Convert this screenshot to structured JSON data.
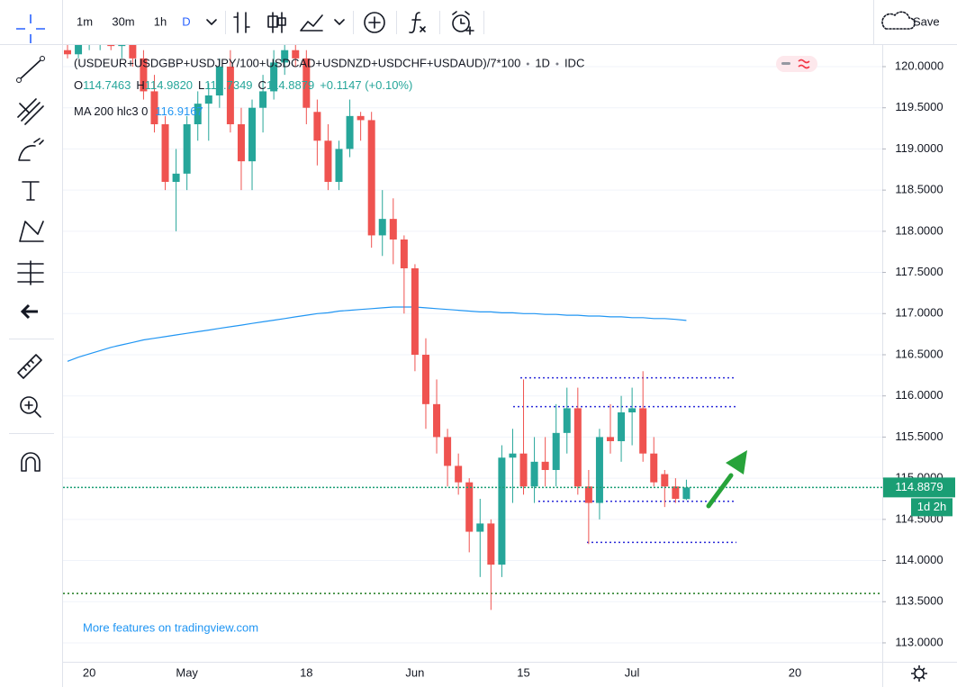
{
  "toolbar": {
    "intervals": [
      "1m",
      "30m",
      "1h",
      "D"
    ],
    "save": "Save"
  },
  "chart_data": {
    "type": "candlestick",
    "title": "(USDEUR+USDGBP+USDJPY/100+USDCAD+USDNZD+USDCHF+USDAUD)/7*100",
    "interval": "1D",
    "source": "IDC",
    "ohlc_legend": [
      {
        "key": "O",
        "value": "114.7463"
      },
      {
        "key": "H",
        "value": "114.9820"
      },
      {
        "key": "L",
        "value": "114.7349"
      },
      {
        "key": "C",
        "value": "114.8879"
      }
    ],
    "change": "+0.1147 (+0.10%)",
    "up_color": "#26a69a",
    "down_color": "#ef5350",
    "categories": [
      null,
      null,
      "20",
      null,
      null,
      null,
      null,
      null,
      null,
      null,
      null,
      "May",
      null,
      null,
      null,
      null,
      null,
      null,
      null,
      null,
      null,
      null,
      "18",
      null,
      null,
      null,
      null,
      null,
      null,
      null,
      null,
      null,
      "Jun",
      null,
      null,
      null,
      null,
      null,
      null,
      null,
      null,
      null,
      "15",
      null,
      null,
      null,
      null,
      null,
      null,
      null,
      null,
      null,
      "Jul",
      null,
      null,
      null,
      null,
      null,
      null,
      null,
      null,
      null,
      null,
      null,
      null,
      null,
      null,
      "20"
    ],
    "open": [
      120.2,
      120.15,
      120.3,
      120.35,
      120.4,
      120.25,
      120.3,
      120.1,
      119.7,
      119.3,
      118.6,
      118.7,
      119.3,
      119.55,
      119.65,
      120.0,
      119.3,
      118.85,
      119.5,
      119.7,
      120.05,
      120.2,
      120.1,
      119.45,
      119.1,
      118.6,
      119.0,
      119.4,
      119.35,
      117.95,
      118.15,
      117.9,
      117.55,
      116.5,
      115.9,
      115.5,
      115.15,
      114.95,
      114.35,
      114.45,
      113.95,
      115.25,
      115.3,
      114.9,
      115.2,
      115.1,
      115.55,
      115.85,
      114.9,
      114.7,
      115.5,
      115.45,
      115.8,
      115.85,
      115.3,
      115.05,
      114.9,
      114.7463,
      null,
      null,
      null,
      null,
      null,
      null,
      null,
      null,
      null,
      null
    ],
    "high": [
      120.3,
      120.35,
      120.45,
      120.5,
      120.5,
      120.4,
      120.4,
      120.2,
      119.9,
      119.4,
      119.0,
      119.4,
      119.7,
      119.8,
      120.1,
      120.2,
      119.5,
      119.6,
      119.9,
      120.2,
      120.3,
      120.4,
      120.2,
      119.6,
      119.3,
      119.1,
      119.6,
      119.45,
      119.45,
      118.5,
      118.4,
      117.95,
      117.6,
      116.7,
      116.2,
      115.6,
      115.3,
      115.0,
      114.75,
      114.5,
      115.4,
      115.6,
      116.2,
      115.5,
      115.5,
      115.9,
      116.1,
      116.1,
      115.1,
      115.6,
      115.9,
      116.0,
      116.1,
      116.3,
      115.5,
      115.1,
      115.0,
      114.982,
      null,
      null,
      null,
      null,
      null,
      null,
      null,
      null,
      null,
      null
    ],
    "low": [
      120.1,
      120.1,
      120.2,
      120.2,
      120.2,
      120.1,
      120.0,
      119.6,
      119.2,
      118.5,
      118.0,
      118.5,
      119.1,
      119.1,
      119.5,
      119.2,
      118.5,
      118.5,
      119.2,
      119.6,
      119.9,
      120.0,
      119.3,
      118.8,
      118.5,
      118.5,
      118.9,
      119.1,
      117.8,
      117.7,
      117.6,
      117.0,
      116.3,
      115.6,
      115.3,
      114.9,
      114.8,
      114.1,
      113.8,
      113.4,
      113.8,
      114.7,
      114.8,
      114.7,
      114.9,
      114.9,
      115.3,
      114.8,
      114.2,
      114.5,
      115.3,
      115.2,
      115.4,
      115.2,
      114.9,
      114.65,
      114.7,
      114.7349,
      null,
      null,
      null,
      null,
      null,
      null,
      null,
      null,
      null,
      null
    ],
    "close": [
      120.15,
      120.3,
      120.35,
      120.4,
      120.25,
      120.3,
      120.1,
      119.7,
      119.3,
      118.6,
      118.7,
      119.3,
      119.55,
      119.65,
      120.0,
      119.3,
      118.85,
      119.5,
      119.7,
      120.05,
      120.2,
      120.1,
      119.5,
      119.1,
      118.6,
      119.0,
      119.4,
      119.35,
      117.95,
      118.15,
      117.9,
      117.55,
      116.5,
      115.9,
      115.5,
      115.15,
      114.95,
      114.35,
      114.45,
      113.95,
      115.25,
      115.3,
      114.9,
      115.2,
      115.1,
      115.55,
      115.85,
      114.9,
      114.7,
      115.5,
      115.45,
      115.8,
      115.85,
      115.3,
      114.95,
      114.9,
      114.75,
      114.8879,
      null,
      null,
      null,
      null,
      null,
      null,
      null,
      null,
      null,
      null
    ],
    "indicator": {
      "name": "MA 200 hlc3 0",
      "value": 116.9167,
      "color": "#2196f3",
      "values": [
        116.42,
        116.47,
        116.51,
        116.55,
        116.59,
        116.62,
        116.65,
        116.68,
        116.7,
        116.72,
        116.74,
        116.76,
        116.78,
        116.8,
        116.82,
        116.84,
        116.86,
        116.88,
        116.9,
        116.92,
        116.94,
        116.96,
        116.98,
        117.0,
        117.01,
        117.03,
        117.04,
        117.05,
        117.06,
        117.07,
        117.08,
        117.08,
        117.08,
        117.07,
        117.06,
        117.05,
        117.04,
        117.03,
        117.02,
        117.02,
        117.01,
        117.01,
        117.0,
        117.0,
        116.99,
        116.99,
        116.98,
        116.98,
        116.97,
        116.97,
        116.96,
        116.96,
        116.95,
        116.95,
        116.94,
        116.94,
        116.93,
        116.9167,
        null,
        null,
        null,
        null,
        null,
        null,
        null,
        null,
        null,
        null
      ]
    },
    "levels": [
      {
        "value": 116.22,
        "color": "#2b2bd9"
      },
      {
        "value": 115.87,
        "color": "#2b2bd9"
      },
      {
        "value": 114.72,
        "color": "#2b2bd9"
      },
      {
        "value": 114.22,
        "color": "#2b2bd9"
      },
      {
        "value": 113.6,
        "color": "#1f7a1f"
      }
    ],
    "ylim": [
      112.77,
      120.2625
    ],
    "yticks": [
      {
        "value": 113,
        "label": "113.0000"
      },
      {
        "value": 113.5,
        "label": "113.5000"
      },
      {
        "value": 114,
        "label": "114.0000"
      },
      {
        "value": 114.5,
        "label": "114.5000"
      },
      {
        "value": 115,
        "label": "115.0000"
      },
      {
        "value": 115.5,
        "label": "115.5000"
      },
      {
        "value": 116,
        "label": "116.0000"
      },
      {
        "value": 116.5,
        "label": "116.5000"
      },
      {
        "value": 117,
        "label": "117.0000"
      },
      {
        "value": 117.5,
        "label": "117.5000"
      },
      {
        "value": 118,
        "label": "118.0000"
      },
      {
        "value": 118.5,
        "label": "118.5000"
      },
      {
        "value": 119,
        "label": "119.0000"
      },
      {
        "value": 119.5,
        "label": "119.5000"
      },
      {
        "value": 120,
        "label": "120.0000"
      }
    ],
    "grid": true,
    "last_price": {
      "label": "114.8879",
      "countdown": "1d 2h",
      "color": "#1a9e74"
    },
    "watermark": "More features on tradingview.com"
  }
}
